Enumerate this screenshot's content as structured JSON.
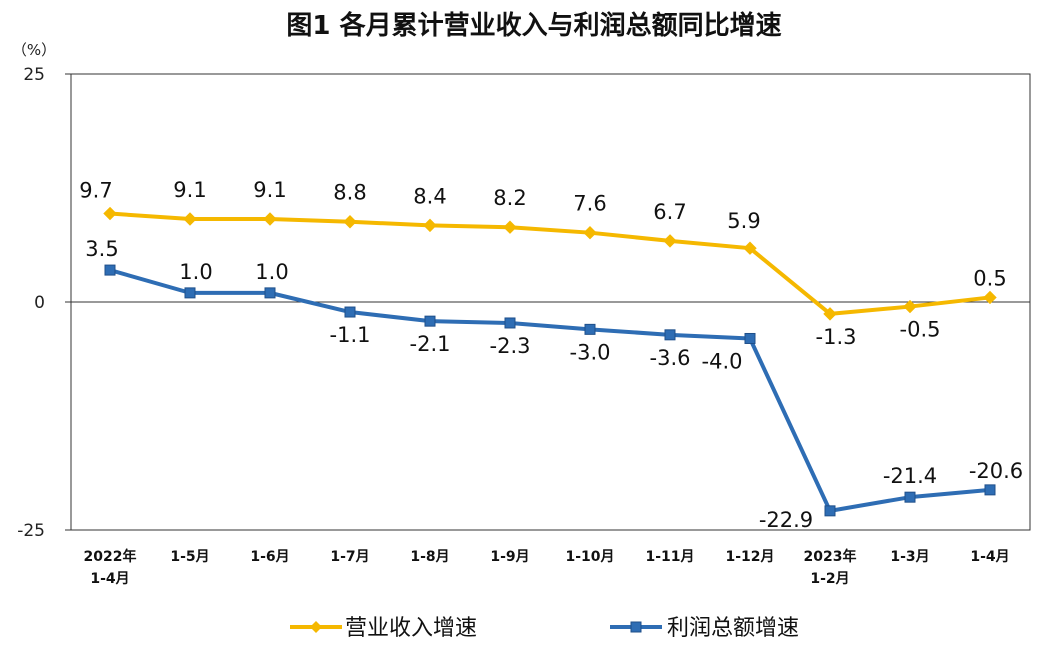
{
  "chart_data": {
    "type": "line",
    "title": "图1  各月累计营业收入与利润总额同比增速",
    "unit": "（%）",
    "categories": [
      [
        "2022年",
        "1-4月"
      ],
      [
        "1-5月"
      ],
      [
        "1-6月"
      ],
      [
        "1-7月"
      ],
      [
        "1-8月"
      ],
      [
        "1-9月"
      ],
      [
        "1-10月"
      ],
      [
        "1-11月"
      ],
      [
        "1-12月"
      ],
      [
        "2023年",
        "1-2月"
      ],
      [
        "1-3月"
      ],
      [
        "1-4月"
      ]
    ],
    "ylim": [
      -25,
      25
    ],
    "yticks": [
      25,
      0,
      -25
    ],
    "series": [
      {
        "name": "营业收入增速",
        "color": "#f5b800",
        "marker": "diamond",
        "values": [
          9.7,
          9.1,
          9.1,
          8.8,
          8.4,
          8.2,
          7.6,
          6.7,
          5.9,
          -1.3,
          -0.5,
          0.5
        ],
        "labels": [
          "9.7",
          "9.1",
          "9.1",
          "8.8",
          "8.4",
          "8.2",
          "7.6",
          "6.7",
          "5.9",
          "-1.3",
          "-0.5",
          "0.5"
        ]
      },
      {
        "name": "利润总额增速",
        "color": "#2e6db4",
        "marker": "square",
        "values": [
          3.5,
          1.0,
          1.0,
          -1.1,
          -2.1,
          -2.3,
          -3.0,
          -3.6,
          -4.0,
          -22.9,
          -21.4,
          -20.6
        ],
        "labels": [
          "3.5",
          "1.0",
          "1.0",
          "-1.1",
          "-2.1",
          "-2.3",
          "-3.0",
          "-3.6",
          "-4.0",
          "-22.9",
          "-21.4",
          "-20.6"
        ]
      }
    ],
    "legend_position": "bottom",
    "grid": false
  }
}
